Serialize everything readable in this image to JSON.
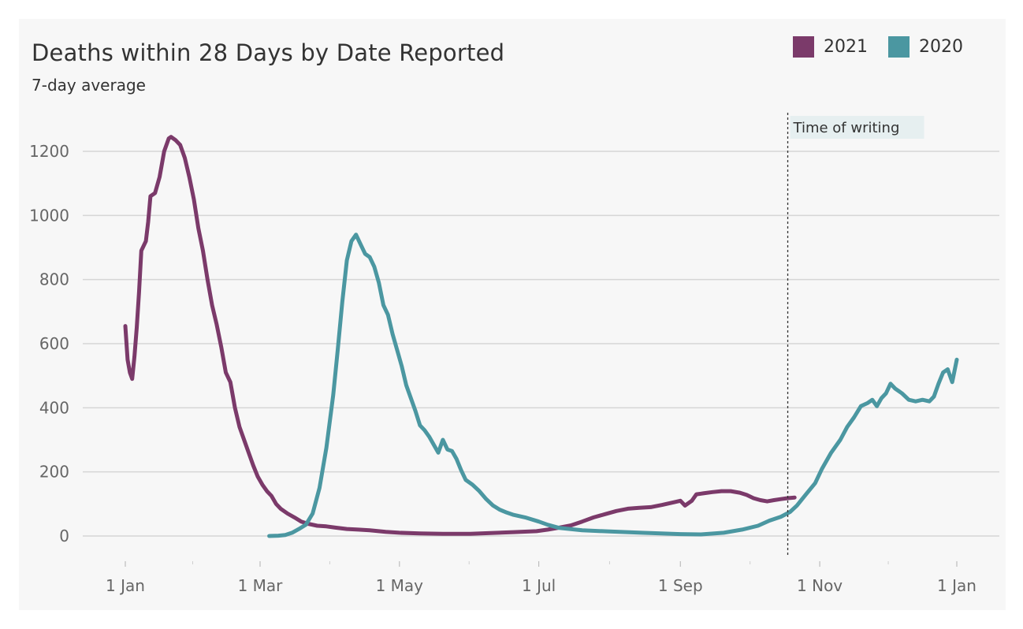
{
  "chart_data": {
    "type": "line",
    "title": "Deaths within 28 Days by Date Reported",
    "subtitle": "7-day average",
    "xlabel": "",
    "ylabel": "",
    "x_axis": {
      "type": "date",
      "range": [
        "2021-01-01",
        "2021-12-31"
      ],
      "ticks": [
        {
          "value": "2021-01-01",
          "label": "1 Jan"
        },
        {
          "value": "2021-03-01",
          "label": "1 Mar"
        },
        {
          "value": "2021-05-01",
          "label": "1 May"
        },
        {
          "value": "2021-07-01",
          "label": "1 Jul"
        },
        {
          "value": "2021-09-01",
          "label": "1 Sep"
        },
        {
          "value": "2021-11-01",
          "label": "1 Nov"
        },
        {
          "value": "2021-12-31",
          "label": "1 Jan"
        }
      ]
    },
    "ylim": [
      -70,
      1350
    ],
    "yticks": [
      0,
      200,
      400,
      600,
      800,
      1000,
      1200
    ],
    "grid": true,
    "legend_position": "top-right",
    "annotation": {
      "label": "Time of writing",
      "x": "2021-10-18"
    },
    "series": [
      {
        "name": "2021",
        "color": "#7b3a6a",
        "points": [
          [
            "2021-01-01",
            655
          ],
          [
            "2021-01-02",
            550
          ],
          [
            "2021-01-03",
            510
          ],
          [
            "2021-01-04",
            490
          ],
          [
            "2021-01-05",
            560
          ],
          [
            "2021-01-06",
            650
          ],
          [
            "2021-01-07",
            760
          ],
          [
            "2021-01-08",
            890
          ],
          [
            "2021-01-10",
            920
          ],
          [
            "2021-01-11",
            980
          ],
          [
            "2021-01-12",
            1060
          ],
          [
            "2021-01-14",
            1070
          ],
          [
            "2021-01-16",
            1120
          ],
          [
            "2021-01-18",
            1200
          ],
          [
            "2021-01-20",
            1240
          ],
          [
            "2021-01-21",
            1245
          ],
          [
            "2021-01-23",
            1235
          ],
          [
            "2021-01-25",
            1220
          ],
          [
            "2021-01-27",
            1180
          ],
          [
            "2021-01-29",
            1120
          ],
          [
            "2021-01-31",
            1050
          ],
          [
            "2021-02-02",
            960
          ],
          [
            "2021-02-04",
            890
          ],
          [
            "2021-02-06",
            800
          ],
          [
            "2021-02-08",
            720
          ],
          [
            "2021-02-10",
            660
          ],
          [
            "2021-02-12",
            590
          ],
          [
            "2021-02-14",
            510
          ],
          [
            "2021-02-16",
            480
          ],
          [
            "2021-02-18",
            400
          ],
          [
            "2021-02-20",
            340
          ],
          [
            "2021-02-22",
            300
          ],
          [
            "2021-02-24",
            260
          ],
          [
            "2021-02-26",
            220
          ],
          [
            "2021-02-28",
            185
          ],
          [
            "2021-03-02",
            160
          ],
          [
            "2021-03-04",
            140
          ],
          [
            "2021-03-06",
            125
          ],
          [
            "2021-03-08",
            100
          ],
          [
            "2021-03-10",
            85
          ],
          [
            "2021-03-13",
            70
          ],
          [
            "2021-03-16",
            58
          ],
          [
            "2021-03-19",
            45
          ],
          [
            "2021-03-22",
            38
          ],
          [
            "2021-03-26",
            32
          ],
          [
            "2021-03-30",
            30
          ],
          [
            "2021-04-03",
            26
          ],
          [
            "2021-04-08",
            22
          ],
          [
            "2021-04-13",
            20
          ],
          [
            "2021-04-18",
            18
          ],
          [
            "2021-04-25",
            13
          ],
          [
            "2021-05-01",
            10
          ],
          [
            "2021-05-10",
            8
          ],
          [
            "2021-05-20",
            7
          ],
          [
            "2021-06-01",
            7
          ],
          [
            "2021-06-10",
            9
          ],
          [
            "2021-06-20",
            12
          ],
          [
            "2021-06-30",
            15
          ],
          [
            "2021-07-05",
            20
          ],
          [
            "2021-07-10",
            26
          ],
          [
            "2021-07-15",
            33
          ],
          [
            "2021-07-20",
            45
          ],
          [
            "2021-07-25",
            58
          ],
          [
            "2021-07-30",
            68
          ],
          [
            "2021-08-04",
            78
          ],
          [
            "2021-08-09",
            85
          ],
          [
            "2021-08-14",
            88
          ],
          [
            "2021-08-19",
            90
          ],
          [
            "2021-08-24",
            97
          ],
          [
            "2021-08-29",
            105
          ],
          [
            "2021-09-01",
            110
          ],
          [
            "2021-09-03",
            95
          ],
          [
            "2021-09-06",
            110
          ],
          [
            "2021-09-08",
            130
          ],
          [
            "2021-09-11",
            133
          ],
          [
            "2021-09-15",
            137
          ],
          [
            "2021-09-19",
            140
          ],
          [
            "2021-09-23",
            140
          ],
          [
            "2021-09-27",
            135
          ],
          [
            "2021-09-30",
            128
          ],
          [
            "2021-10-03",
            118
          ],
          [
            "2021-10-06",
            112
          ],
          [
            "2021-10-09",
            108
          ],
          [
            "2021-10-12",
            112
          ],
          [
            "2021-10-15",
            115
          ],
          [
            "2021-10-18",
            118
          ],
          [
            "2021-10-21",
            120
          ]
        ]
      },
      {
        "name": "2020",
        "color": "#4b97a1",
        "points": [
          [
            "2021-03-05",
            0
          ],
          [
            "2021-03-09",
            1
          ],
          [
            "2021-03-12",
            3
          ],
          [
            "2021-03-15",
            10
          ],
          [
            "2021-03-18",
            22
          ],
          [
            "2021-03-21",
            35
          ],
          [
            "2021-03-24",
            70
          ],
          [
            "2021-03-27",
            150
          ],
          [
            "2021-03-30",
            275
          ],
          [
            "2021-04-02",
            440
          ],
          [
            "2021-04-04",
            580
          ],
          [
            "2021-04-06",
            730
          ],
          [
            "2021-04-08",
            860
          ],
          [
            "2021-04-10",
            920
          ],
          [
            "2021-04-12",
            940
          ],
          [
            "2021-04-14",
            910
          ],
          [
            "2021-04-16",
            880
          ],
          [
            "2021-04-18",
            870
          ],
          [
            "2021-04-20",
            840
          ],
          [
            "2021-04-22",
            790
          ],
          [
            "2021-04-24",
            720
          ],
          [
            "2021-04-26",
            690
          ],
          [
            "2021-04-28",
            630
          ],
          [
            "2021-04-30",
            580
          ],
          [
            "2021-05-02",
            530
          ],
          [
            "2021-05-04",
            470
          ],
          [
            "2021-05-06",
            430
          ],
          [
            "2021-05-08",
            390
          ],
          [
            "2021-05-10",
            345
          ],
          [
            "2021-05-12",
            330
          ],
          [
            "2021-05-14",
            310
          ],
          [
            "2021-05-16",
            285
          ],
          [
            "2021-05-18",
            260
          ],
          [
            "2021-05-20",
            300
          ],
          [
            "2021-05-22",
            270
          ],
          [
            "2021-05-24",
            265
          ],
          [
            "2021-05-26",
            240
          ],
          [
            "2021-05-28",
            205
          ],
          [
            "2021-05-30",
            175
          ],
          [
            "2021-06-02",
            160
          ],
          [
            "2021-06-05",
            140
          ],
          [
            "2021-06-08",
            115
          ],
          [
            "2021-06-11",
            95
          ],
          [
            "2021-06-14",
            82
          ],
          [
            "2021-06-17",
            73
          ],
          [
            "2021-06-20",
            66
          ],
          [
            "2021-06-25",
            58
          ],
          [
            "2021-07-01",
            45
          ],
          [
            "2021-07-05",
            35
          ],
          [
            "2021-07-10",
            25
          ],
          [
            "2021-07-20",
            18
          ],
          [
            "2021-08-01",
            14
          ],
          [
            "2021-08-15",
            10
          ],
          [
            "2021-09-01",
            6
          ],
          [
            "2021-09-10",
            5
          ],
          [
            "2021-09-20",
            10
          ],
          [
            "2021-09-28",
            20
          ],
          [
            "2021-10-05",
            32
          ],
          [
            "2021-10-10",
            48
          ],
          [
            "2021-10-15",
            60
          ],
          [
            "2021-10-19",
            75
          ],
          [
            "2021-10-22",
            95
          ],
          [
            "2021-10-26",
            130
          ],
          [
            "2021-10-30",
            165
          ],
          [
            "2021-11-02",
            210
          ],
          [
            "2021-11-06",
            260
          ],
          [
            "2021-11-10",
            300
          ],
          [
            "2021-11-13",
            340
          ],
          [
            "2021-11-16",
            370
          ],
          [
            "2021-11-19",
            405
          ],
          [
            "2021-11-22",
            415
          ],
          [
            "2021-11-24",
            425
          ],
          [
            "2021-11-26",
            405
          ],
          [
            "2021-11-28",
            430
          ],
          [
            "2021-11-30",
            445
          ],
          [
            "2021-12-02",
            475
          ],
          [
            "2021-12-04",
            460
          ],
          [
            "2021-12-07",
            445
          ],
          [
            "2021-12-10",
            425
          ],
          [
            "2021-12-13",
            420
          ],
          [
            "2021-12-16",
            425
          ],
          [
            "2021-12-19",
            420
          ],
          [
            "2021-12-21",
            435
          ],
          [
            "2021-12-23",
            475
          ],
          [
            "2021-12-25",
            510
          ],
          [
            "2021-12-27",
            520
          ],
          [
            "2021-12-29",
            480
          ],
          [
            "2021-12-31",
            550
          ]
        ]
      }
    ]
  }
}
